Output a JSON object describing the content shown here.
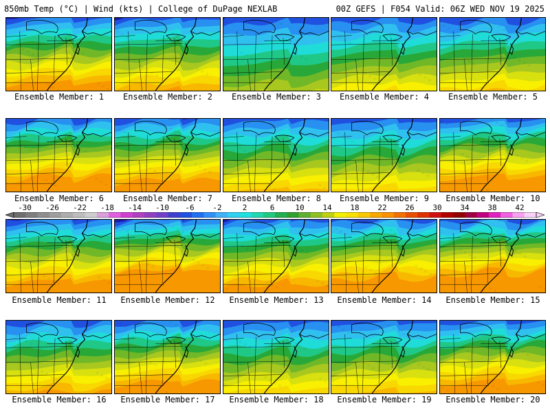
{
  "header": {
    "left": "850mb Temp (°C) | Wind (kts) | College of DuPage NEXLAB",
    "right": "00Z GEFS | F054 Valid: 06Z WED NOV 19 2025"
  },
  "panels": [
    {
      "label": "Ensemble Member: 1",
      "cold": 0.95
    },
    {
      "label": "Ensemble Member: 2",
      "cold": 0.85
    },
    {
      "label": "Ensemble Member: 3",
      "cold": 0.55
    },
    {
      "label": "Ensemble Member: 4",
      "cold": 0.7
    },
    {
      "label": "Ensemble Member: 5",
      "cold": 0.75
    },
    {
      "label": "Ensemble Member: 6",
      "cold": 1.05
    },
    {
      "label": "Ensemble Member: 7",
      "cold": 1.0
    },
    {
      "label": "Ensemble Member: 8",
      "cold": 0.8
    },
    {
      "label": "Ensemble Member: 9",
      "cold": 0.75
    },
    {
      "label": "Ensemble Member: 10",
      "cold": 1.05
    },
    {
      "label": "Ensemble Member: 11",
      "cold": 1.0
    },
    {
      "label": "Ensemble Member: 12",
      "cold": 1.2
    },
    {
      "label": "Ensemble Member: 13",
      "cold": 0.95
    },
    {
      "label": "Ensemble Member: 14",
      "cold": 1.05
    },
    {
      "label": "Ensemble Member: 15",
      "cold": 1.15
    },
    {
      "label": "Ensemble Member: 16",
      "cold": 0.85
    },
    {
      "label": "Ensemble Member: 17",
      "cold": 1.0
    },
    {
      "label": "Ensemble Member: 18",
      "cold": 0.75
    },
    {
      "label": "Ensemble Member: 19",
      "cold": 0.8
    },
    {
      "label": "Ensemble Member: 20",
      "cold": 1.0
    }
  ],
  "colorbar": {
    "ticks": [
      "-30",
      "-26",
      "-22",
      "-18",
      "-14",
      "-10",
      "-6",
      "-2",
      "2",
      "6",
      "10",
      "14",
      "18",
      "22",
      "26",
      "30",
      "34",
      "38",
      "42"
    ],
    "colors": [
      "#6e6e6e",
      "#7e7e7e",
      "#8e8e8e",
      "#9e9e9e",
      "#aeaeae",
      "#bdbdbd",
      "#cdcdcd",
      "#d9a0d9",
      "#e060e0",
      "#d040d0",
      "#b040c0",
      "#9040c0",
      "#7040c8",
      "#4040d0",
      "#2050e0",
      "#2070f0",
      "#3090f8",
      "#40b0f8",
      "#30d0f0",
      "#20e0e0",
      "#20d8b0",
      "#20c880",
      "#20b050",
      "#30a030",
      "#60b030",
      "#90c020",
      "#c0d010",
      "#f0f000",
      "#f8e000",
      "#f8c800",
      "#f8a800",
      "#f89000",
      "#f07000",
      "#e85000",
      "#e03000",
      "#d01010",
      "#b00000",
      "#900000",
      "#a00040",
      "#c00080",
      "#e020c0",
      "#f060e0",
      "#f8a0f0",
      "#f8d0f8"
    ]
  },
  "palette": {
    "temp_scale": [
      "#1818a8",
      "#2050e0",
      "#2890f0",
      "#30c0f0",
      "#20dcd8",
      "#20c888",
      "#28a838",
      "#70b828",
      "#a8c820",
      "#d8e010",
      "#f8f000",
      "#f8d800",
      "#f8b800",
      "#f89800"
    ]
  }
}
